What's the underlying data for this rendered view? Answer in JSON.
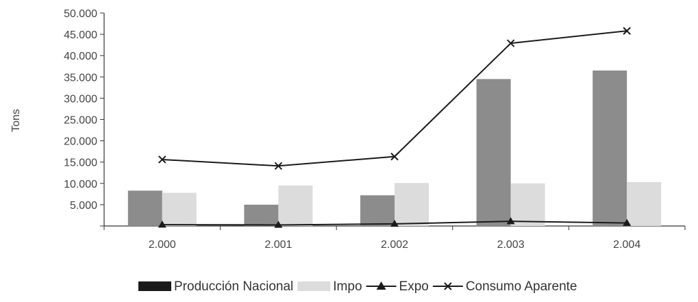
{
  "chart_data": {
    "type": "bar",
    "categories": [
      "2.000",
      "2.001",
      "2.002",
      "2.003",
      "2.004"
    ],
    "ylabel": "Tons",
    "ylim": [
      0,
      50000
    ],
    "yticks": [
      "5.000",
      "10.000",
      "15.000",
      "20.000",
      "25.000",
      "30.000",
      "35.000",
      "40.000",
      "45.000",
      "50.000"
    ],
    "grid": false,
    "legend_position": "bottom",
    "series": [
      {
        "name": "Producción Nacional",
        "kind": "bar",
        "color": "#8c8c8c",
        "legend_color": "#1a1a1a",
        "values": [
          8300,
          5000,
          7200,
          34500,
          36500
        ]
      },
      {
        "name": "Impo",
        "kind": "bar",
        "color": "#dcdcdc",
        "legend_color": "#dcdcdc",
        "values": [
          7800,
          9500,
          10100,
          10000,
          10300
        ]
      },
      {
        "name": "Expo",
        "kind": "line",
        "marker": "triangle",
        "color": "#1a1a1a",
        "values": [
          300,
          250,
          500,
          1100,
          700
        ]
      },
      {
        "name": "Consumo Aparente",
        "kind": "line",
        "marker": "x",
        "color": "#1a1a1a",
        "values": [
          15600,
          14100,
          16300,
          42900,
          45800
        ]
      }
    ]
  }
}
